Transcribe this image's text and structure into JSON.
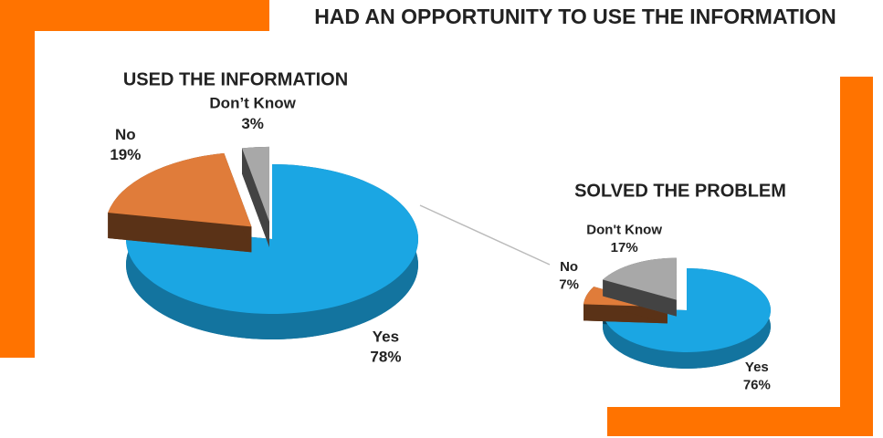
{
  "title": "HAD AN OPPORTUNITY TO USE THE INFORMATION",
  "chart_data": [
    {
      "type": "pie",
      "title": "USED THE INFORMATION",
      "categories": [
        "Yes",
        "No",
        "Don’t Know"
      ],
      "values": [
        78,
        19,
        3
      ],
      "value_labels": [
        "78%",
        "19%",
        "3%"
      ],
      "colors": [
        "#1ba6e3",
        "#e07c3a",
        "#a8a8a8"
      ]
    },
    {
      "type": "pie",
      "title": "SOLVED THE PROBLEM",
      "categories": [
        "Yes",
        "No",
        "Don't Know"
      ],
      "values": [
        76,
        7,
        17
      ],
      "value_labels": [
        "76%",
        "7%",
        "17%"
      ],
      "colors": [
        "#1ba6e3",
        "#e07c3a",
        "#a8a8a8"
      ]
    }
  ]
}
